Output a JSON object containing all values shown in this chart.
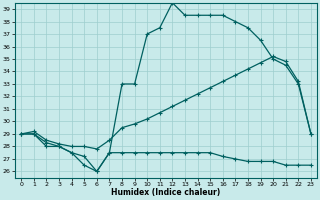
{
  "xlabel": "Humidex (Indice chaleur)",
  "xlim": [
    -0.5,
    23.5
  ],
  "ylim": [
    25.5,
    39.5
  ],
  "xticks": [
    0,
    1,
    2,
    3,
    4,
    5,
    6,
    7,
    8,
    9,
    10,
    11,
    12,
    13,
    14,
    15,
    16,
    17,
    18,
    19,
    20,
    21,
    22,
    23
  ],
  "yticks": [
    26,
    27,
    28,
    29,
    30,
    31,
    32,
    33,
    34,
    35,
    36,
    37,
    38,
    39
  ],
  "bg_color": "#c8eaea",
  "line_color": "#006060",
  "grid_color": "#9ecece",
  "line1_x": [
    0,
    1,
    2,
    3,
    4,
    5,
    6,
    7,
    8,
    9,
    10,
    11,
    12,
    13,
    14,
    15,
    16,
    17,
    18,
    19,
    20,
    21,
    22,
    23
  ],
  "line1_y": [
    29.0,
    29.0,
    28.0,
    28.0,
    27.5,
    26.5,
    26.0,
    27.5,
    33.0,
    33.0,
    37.0,
    37.5,
    39.5,
    38.5,
    38.5,
    38.5,
    38.5,
    38.0,
    37.5,
    36.5,
    35.0,
    34.5,
    33.0,
    29.0
  ],
  "line2_x": [
    0,
    1,
    2,
    3,
    4,
    5,
    6,
    7,
    8,
    9,
    10,
    11,
    12,
    13,
    14,
    15,
    16,
    17,
    18,
    19,
    20,
    21,
    22,
    23
  ],
  "line2_y": [
    29.0,
    29.0,
    28.3,
    28.0,
    27.5,
    27.2,
    26.0,
    27.5,
    27.5,
    27.5,
    27.5,
    27.5,
    27.5,
    27.5,
    27.5,
    27.5,
    27.2,
    27.0,
    26.8,
    26.8,
    26.8,
    26.5,
    26.5,
    26.5
  ],
  "line3_x": [
    0,
    1,
    2,
    3,
    4,
    5,
    6,
    7,
    8,
    9,
    10,
    11,
    12,
    13,
    14,
    15,
    16,
    17,
    18,
    19,
    20,
    21,
    22,
    23
  ],
  "line3_y": [
    29.0,
    29.2,
    28.5,
    28.2,
    28.0,
    28.0,
    27.8,
    28.5,
    29.5,
    29.8,
    30.2,
    30.7,
    31.2,
    31.7,
    32.2,
    32.7,
    33.2,
    33.7,
    34.2,
    34.7,
    35.2,
    34.8,
    33.2,
    29.0
  ]
}
